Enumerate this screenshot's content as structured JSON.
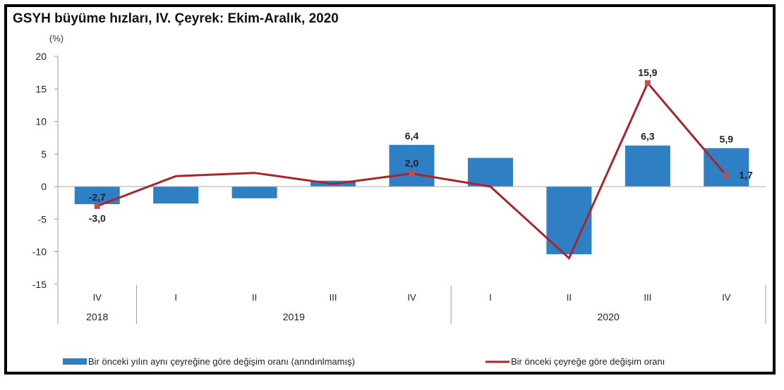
{
  "chart_data": {
    "type": "bar+line",
    "title": "GSYH büyüme hızları, IV. Çeyrek: Ekim-Aralık, 2020",
    "ylabel": "(%)",
    "ylim": [
      -15,
      20
    ],
    "yticks": [
      20,
      15,
      10,
      5,
      0,
      -5,
      -10,
      -15
    ],
    "categories": [
      "IV",
      "I",
      "II",
      "III",
      "IV",
      "I",
      "II",
      "III",
      "IV"
    ],
    "year_groups": [
      {
        "label": "2018",
        "span": 1
      },
      {
        "label": "2019",
        "span": 4
      },
      {
        "label": "2020",
        "span": 4
      }
    ],
    "grid": false,
    "legend_position": "bottom",
    "series": [
      {
        "name": "Bir önceki yılın aynı çeyreğine göre değişim oranı (arındırılmamış)",
        "legend_text": "Bir önceki yılın aynı çeyreğine göre değişim oranı (anndınlmamış)",
        "type": "bar",
        "color": "#2e7fc3",
        "values": [
          -2.7,
          -2.6,
          -1.8,
          0.9,
          6.4,
          4.4,
          -10.4,
          6.3,
          5.9
        ],
        "labels": [
          "-2,7",
          "",
          "",
          "",
          "6,4",
          "",
          "",
          "6,3",
          "5,9"
        ]
      },
      {
        "name": "Bir önceki çeyreğe göre değişim oranı",
        "type": "line",
        "color": "#a8262b",
        "values": [
          -3.0,
          1.6,
          2.1,
          0.4,
          2.0,
          0.0,
          -11.0,
          15.9,
          1.7
        ],
        "labels": [
          "-3,0",
          "",
          "",
          "",
          "2,0",
          "",
          "",
          "15,9",
          "1,7"
        ]
      }
    ]
  }
}
